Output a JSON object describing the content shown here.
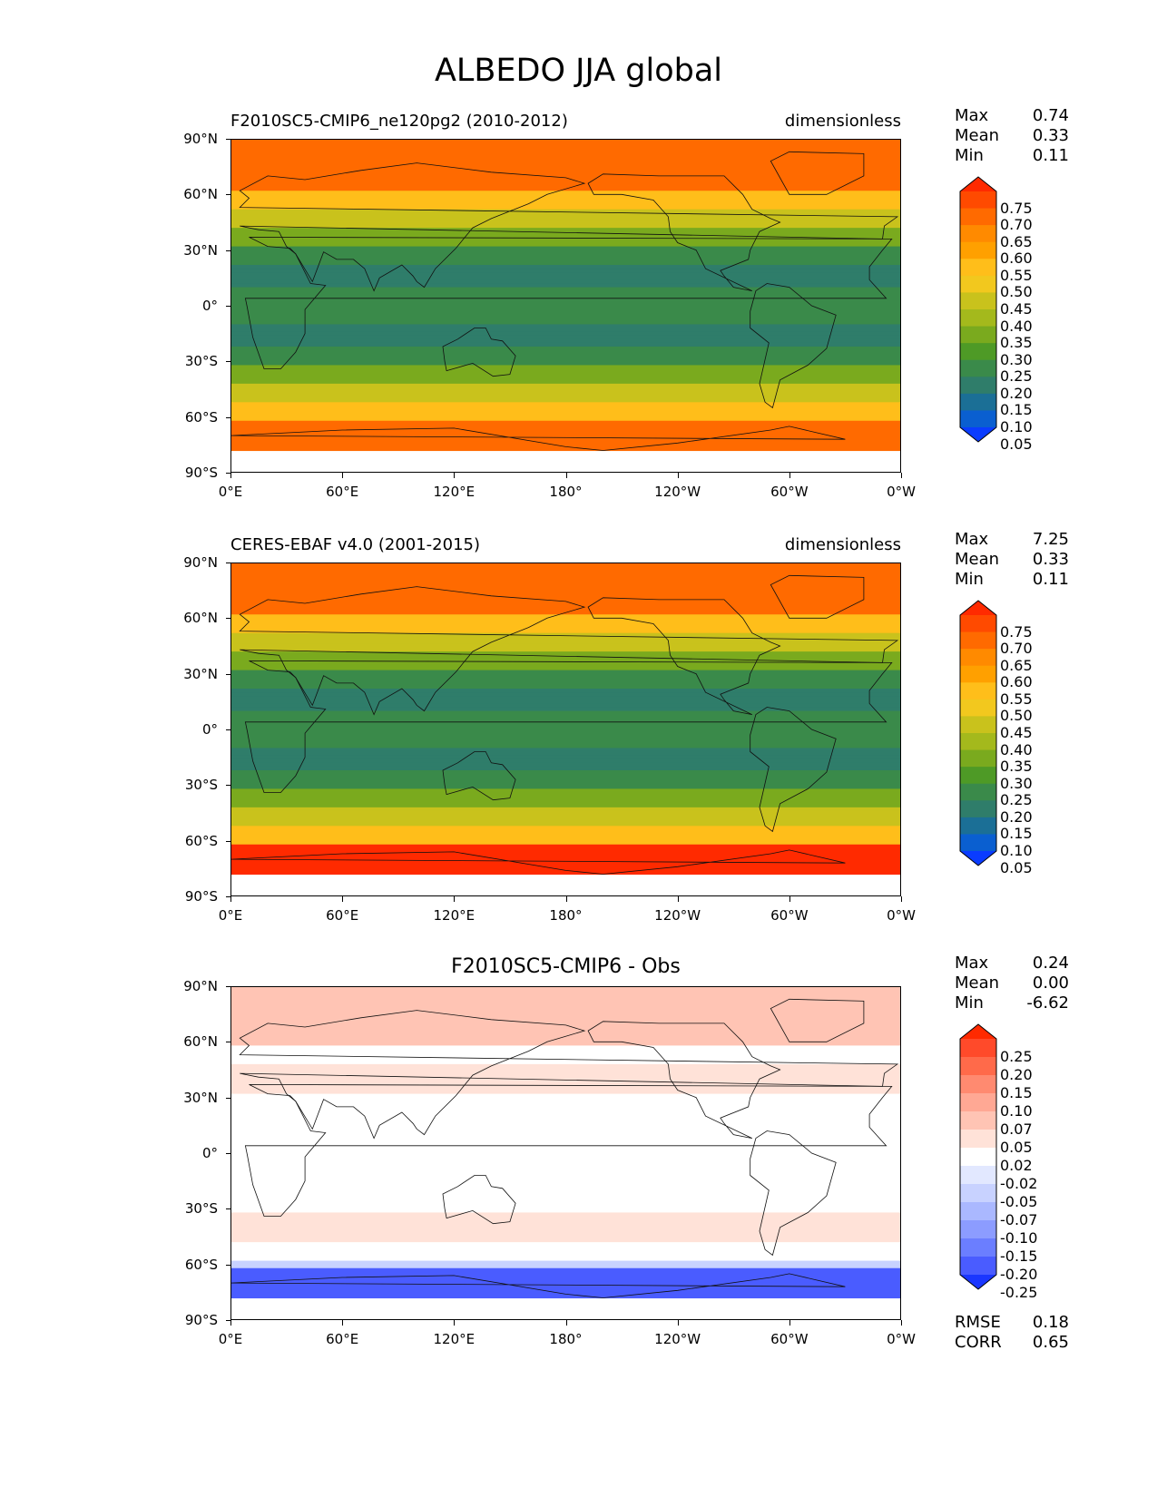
{
  "figure": {
    "title": "ALBEDO JJA global"
  },
  "axes": {
    "lat_labels": [
      "90°N",
      "60°N",
      "30°N",
      "0°",
      "30°S",
      "60°S",
      "90°S"
    ],
    "lon_labels": [
      "0°E",
      "60°E",
      "120°E",
      "180°",
      "120°W",
      "60°W",
      "0°W"
    ]
  },
  "panels": [
    {
      "left_title": "F2010SC5-CMIP6_ne120pg2 (2010-2012)",
      "center_title": "",
      "right_title": "dimensionless",
      "stats": [
        {
          "label": "Max",
          "value": "0.74"
        },
        {
          "label": "Mean",
          "value": "0.33"
        },
        {
          "label": "Min",
          "value": "0.11"
        }
      ],
      "colorbar": {
        "labels": [
          "0.75",
          "0.70",
          "0.65",
          "0.60",
          "0.55",
          "0.50",
          "0.45",
          "0.40",
          "0.35",
          "0.30",
          "0.25",
          "0.20",
          "0.15",
          "0.10",
          "0.05"
        ],
        "colors": [
          "#ff2a00",
          "#ff4a00",
          "#ff6a00",
          "#ff8a00",
          "#ffa000",
          "#ffbe1a",
          "#f2c81e",
          "#c9c21c",
          "#a4b91c",
          "#7aaa1e",
          "#4e9a26",
          "#3a8a4a",
          "#2f7d6a",
          "#1b6f96",
          "#0a5fd0",
          "#0a3cff"
        ]
      },
      "field": "model"
    },
    {
      "left_title": "CERES-EBAF v4.0 (2001-2015)",
      "center_title": "",
      "right_title": "dimensionless",
      "stats": [
        {
          "label": "Max",
          "value": "7.25"
        },
        {
          "label": "Mean",
          "value": "0.33"
        },
        {
          "label": "Min",
          "value": "0.11"
        }
      ],
      "colorbar": {
        "labels": [
          "0.75",
          "0.70",
          "0.65",
          "0.60",
          "0.55",
          "0.50",
          "0.45",
          "0.40",
          "0.35",
          "0.30",
          "0.25",
          "0.20",
          "0.15",
          "0.10",
          "0.05"
        ],
        "colors": [
          "#ff2a00",
          "#ff4a00",
          "#ff6a00",
          "#ff8a00",
          "#ffa000",
          "#ffbe1a",
          "#f2c81e",
          "#c9c21c",
          "#a4b91c",
          "#7aaa1e",
          "#4e9a26",
          "#3a8a4a",
          "#2f7d6a",
          "#1b6f96",
          "#0a5fd0",
          "#0a3cff"
        ]
      },
      "field": "obs"
    },
    {
      "left_title": "",
      "center_title": "F2010SC5-CMIP6 - Obs",
      "right_title": "",
      "stats": [
        {
          "label": "Max",
          "value": "0.24"
        },
        {
          "label": "Mean",
          "value": "0.00"
        },
        {
          "label": "Min",
          "value": "-6.62"
        }
      ],
      "colorbar": {
        "labels": [
          "0.25",
          "0.20",
          "0.15",
          "0.10",
          "0.07",
          "0.05",
          "0.02",
          "-0.02",
          "-0.05",
          "-0.07",
          "-0.10",
          "-0.15",
          "-0.20",
          "-0.25"
        ],
        "colors": [
          "#ff2a00",
          "#ff4a2a",
          "#ff6a4a",
          "#ff8a70",
          "#ffa894",
          "#ffc4b4",
          "#ffe2d8",
          "#ffffff",
          "#e2e8ff",
          "#c8d2ff",
          "#aab8ff",
          "#8c9cff",
          "#6b7eff",
          "#4a5cff",
          "#1a36ff"
        ]
      },
      "diff_stats": [
        {
          "label": "RMSE",
          "value": "0.18"
        },
        {
          "label": "CORR",
          "value": "0.65"
        }
      ],
      "field": "diff"
    }
  ]
}
